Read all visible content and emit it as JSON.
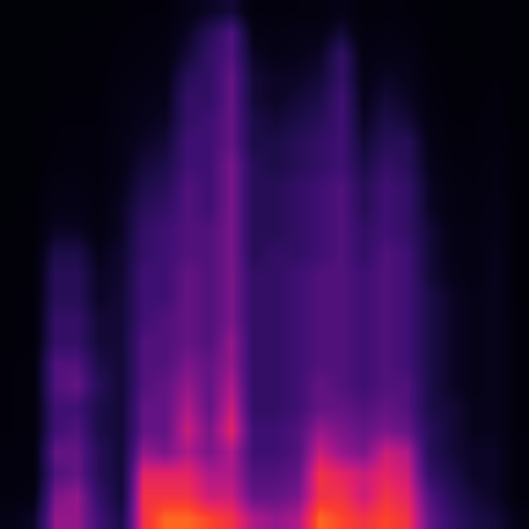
{
  "chart_data": {
    "type": "heatmap",
    "tick_labels": false,
    "grid": false,
    "xlim": [
      -0.5,
      23.5
    ],
    "ylim": [
      -0.5,
      23.5
    ],
    "zlim": [
      0,
      10
    ],
    "cells": [
      [
        1,
        0.6,
        0.5,
        0.5,
        0.4,
        0.4,
        0.4,
        0.4,
        0.3,
        0.3,
        0.3,
        0.3,
        0.3,
        0.3,
        0.2,
        0.2,
        0.2,
        0.2,
        0.2,
        0.2,
        0.2,
        0.2,
        0.2,
        0.2
      ],
      [
        1.5,
        0.8,
        0.6,
        0.6,
        0.5,
        0.5,
        0.5,
        0.5,
        0.4,
        0.4,
        0.4,
        0.4,
        0.3,
        0.3,
        0.3,
        0.3,
        0.2,
        0.2,
        0.2,
        0.2,
        0.2,
        0.2,
        0.2,
        0.2
      ],
      [
        6,
        5.5,
        4.5,
        5,
        4,
        4,
        4.5,
        4.5,
        3.5,
        3.5,
        3,
        3,
        2.5,
        1.5,
        1,
        0.8,
        0.5,
        0.4,
        0.4,
        0.3,
        0.3,
        0.3,
        0.2,
        0.2
      ],
      [
        6,
        6,
        5,
        5,
        4.5,
        4,
        5,
        4.5,
        3.5,
        3.5,
        3,
        3,
        2.5,
        1.5,
        1,
        0.8,
        0.6,
        0.5,
        0.4,
        0.4,
        0.3,
        0.3,
        0.3,
        0.2
      ],
      [
        4,
        3.5,
        3,
        3,
        2.5,
        2.5,
        3,
        2.5,
        2,
        2,
        1.5,
        1.5,
        1.2,
        0.8,
        0.7,
        0.6,
        0.5,
        0.5,
        0.4,
        0.4,
        0.3,
        0.3,
        0.3,
        0.2
      ],
      [
        2.5,
        2,
        2,
        2,
        2,
        2,
        2,
        2,
        2,
        2,
        2,
        1.8,
        1.8,
        1.5,
        1.5,
        1.2,
        1,
        1,
        0.8,
        0.8,
        0.6,
        0.5,
        0.4,
        0.3
      ],
      [
        8,
        8,
        7.5,
        6,
        5,
        5,
        4.5,
        4.5,
        4.5,
        4,
        4,
        4,
        3.5,
        3.5,
        3,
        2.5,
        2,
        1.5,
        1.2,
        1,
        0.8,
        0.6,
        0.5,
        0.4
      ],
      [
        9,
        8,
        7.5,
        5.5,
        5,
        5,
        5,
        4.5,
        4.5,
        4.5,
        4,
        4,
        4,
        4,
        3.5,
        3,
        2.5,
        2,
        1.5,
        1.2,
        1,
        0.8,
        0.6,
        0.4
      ],
      [
        9,
        8,
        7.5,
        6.5,
        7,
        6.5,
        6,
        5.5,
        5,
        5,
        5,
        5,
        4.5,
        4.5,
        4.5,
        4.5,
        4,
        4,
        3.5,
        3.5,
        3,
        2,
        1.5,
        1
      ],
      [
        8.5,
        7,
        6.5,
        5.5,
        5.5,
        5,
        5,
        5,
        4.5,
        4.5,
        4.5,
        4.5,
        4.5,
        4.5,
        4,
        4,
        4,
        4,
        4,
        3.5,
        3.5,
        3.5,
        3,
        1.5
      ],
      [
        8,
        7,
        6.5,
        6.5,
        7.5,
        7,
        6.5,
        6,
        6,
        5.5,
        5.5,
        5.5,
        5.5,
        5.5,
        5.5,
        5.5,
        5.5,
        5,
        5,
        5,
        5,
        4.5,
        4.5,
        2
      ],
      [
        6.5,
        5,
        4.5,
        4,
        4,
        3.5,
        3.5,
        3.5,
        3.5,
        3.5,
        3.5,
        3.5,
        3,
        3,
        3,
        3,
        3,
        2.5,
        2.5,
        2,
        2,
        1.5,
        1,
        0.6
      ],
      [
        6,
        5,
        4.5,
        4,
        4,
        3.5,
        3.5,
        3.5,
        3.5,
        3.5,
        3.5,
        3.5,
        3.5,
        3,
        3,
        3,
        2.5,
        2.5,
        2,
        1.5,
        1.5,
        1,
        0.8,
        0.5
      ],
      [
        6.5,
        5.5,
        5,
        4.5,
        4.5,
        4,
        4,
        4,
        4,
        4,
        4,
        4,
        3.5,
        3.5,
        3.5,
        3.5,
        3,
        3,
        2.5,
        2,
        1.5,
        1.2,
        1,
        0.6
      ],
      [
        9,
        8,
        8,
        7,
        6,
        5,
        5,
        4.5,
        4.5,
        4.5,
        4.5,
        4.5,
        4,
        4,
        4,
        4,
        3.5,
        3.5,
        3,
        2.5,
        2,
        1.5,
        1,
        0.6
      ],
      [
        8.5,
        8,
        7.5,
        6,
        5.5,
        5,
        4.5,
        4.5,
        4.5,
        4.5,
        4.5,
        4.5,
        4.5,
        4.5,
        4.5,
        4.5,
        4,
        4,
        4,
        4,
        3.5,
        3.5,
        2,
        1
      ],
      [
        8,
        7,
        7,
        5.5,
        5,
        4.5,
        4,
        4,
        4,
        4,
        4,
        4,
        3.5,
        3.5,
        3,
        3,
        2.5,
        2,
        1.5,
        1.2,
        1,
        0.8,
        0.6,
        0.4
      ],
      [
        8.5,
        8,
        7.5,
        7,
        5.5,
        5,
        4.5,
        4.5,
        4.5,
        4.5,
        4.5,
        4.5,
        4.5,
        4,
        4,
        4,
        3.5,
        3,
        2.5,
        2,
        1.5,
        1,
        0.8,
        0.5
      ],
      [
        8,
        7.5,
        7,
        6.5,
        5,
        4.5,
        4.5,
        4,
        4,
        4,
        4,
        4,
        4,
        3.5,
        3.5,
        3.5,
        3,
        3,
        2,
        1.5,
        1.2,
        1,
        0.6,
        0.4
      ],
      [
        5,
        4.5,
        3.5,
        3,
        3,
        2.5,
        2.5,
        2.5,
        2.5,
        2.5,
        2.5,
        2,
        2,
        2,
        1.5,
        1.5,
        1.2,
        1,
        0.8,
        0.6,
        0.5,
        0.4,
        0.3,
        0.3
      ],
      [
        3.5,
        3,
        2.5,
        2,
        2,
        2,
        1.5,
        1.5,
        1.5,
        1.5,
        1.5,
        1.2,
        1,
        1,
        0.8,
        0.8,
        0.6,
        0.5,
        0.4,
        0.3,
        0.3,
        0.3,
        0.2,
        0.2
      ],
      [
        2.5,
        2,
        1.5,
        1.5,
        1.2,
        1.2,
        1,
        1,
        1,
        1,
        1,
        0.8,
        0.8,
        0.8,
        0.6,
        0.6,
        0.5,
        0.4,
        0.4,
        0.3,
        0.3,
        0.2,
        0.2,
        0.2
      ],
      [
        2,
        1.5,
        1.5,
        1.5,
        1.2,
        1.2,
        1.2,
        1.2,
        1.2,
        1.2,
        1.2,
        1.2,
        1.2,
        1,
        1,
        0.8,
        0.8,
        0.6,
        0.6,
        0.5,
        0.4,
        0.4,
        0.3,
        0.3
      ],
      [
        1,
        0.5,
        0.5,
        0.5,
        0.4,
        0.4,
        0.4,
        0.4,
        0.4,
        0.4,
        0.3,
        0.3,
        0.3,
        0.3,
        0.3,
        0.3,
        0.3,
        0.3,
        0.2,
        0.2,
        0.2,
        0.2,
        0.2,
        0.2
      ]
    ]
  }
}
